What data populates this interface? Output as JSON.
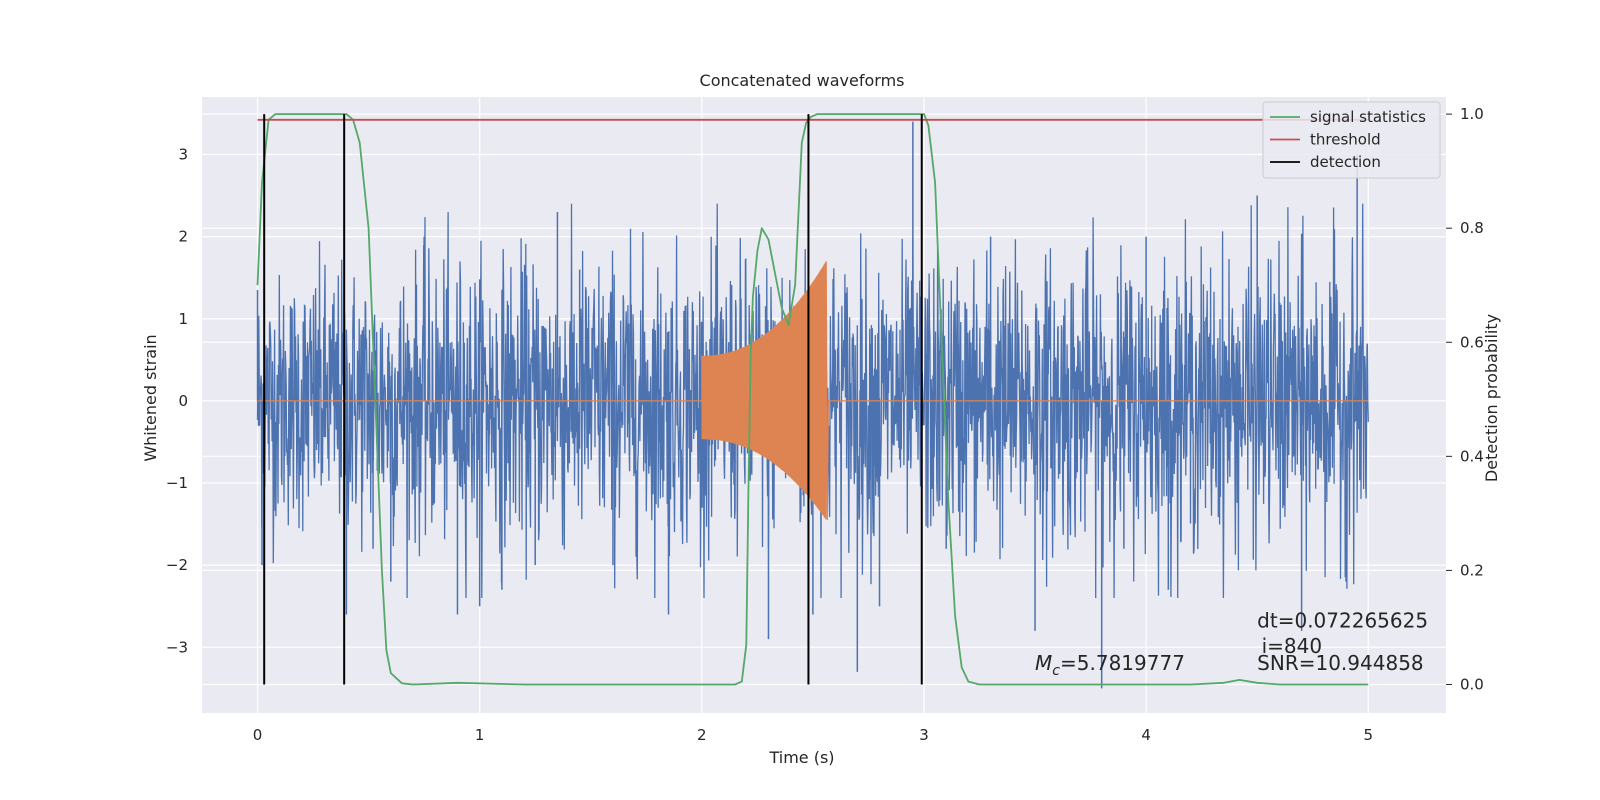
{
  "chart_data": {
    "type": "line",
    "title": "Concatenated waveforms",
    "xlabel": "Time (s)",
    "ylabel_left": "Whitened strain",
    "ylabel_right": "Detection probability",
    "xlim": [
      -0.25,
      5.35
    ],
    "ylim_left": [
      -3.8,
      3.7
    ],
    "ylim_right": [
      -0.05,
      1.03
    ],
    "x_ticks": [
      0,
      1,
      2,
      3,
      4,
      5
    ],
    "x_tick_labels": [
      "0",
      "1",
      "2",
      "3",
      "4",
      "5"
    ],
    "y_left_ticks": [
      -3,
      -2,
      -1,
      0,
      1,
      2,
      3
    ],
    "y_left_tick_labels": [
      "−3",
      "−2",
      "−1",
      "0",
      "1",
      "2",
      "3"
    ],
    "y_right_ticks": [
      0.0,
      0.2,
      0.4,
      0.6,
      0.8,
      1.0
    ],
    "y_right_tick_labels": [
      "0.0",
      "0.2",
      "0.4",
      "0.6",
      "0.8",
      "1.0"
    ],
    "grid": true,
    "background": "#eaeaf2",
    "legend": {
      "placement": "top-right",
      "entries": [
        {
          "label": "signal statistics",
          "color": "#55a868"
        },
        {
          "label": "threshold",
          "color": "#c44e52"
        },
        {
          "label": "detection",
          "color": "#000000"
        }
      ]
    },
    "series": [
      {
        "axis": "left",
        "color": "#4c72b0",
        "t_range": [
          0,
          5
        ],
        "noise_envelope": [
          [
            0.0,
            1.2
          ],
          [
            0.5,
            1.3
          ],
          [
            1.0,
            1.35
          ],
          [
            1.5,
            1.4
          ],
          [
            2.0,
            1.35
          ],
          [
            2.5,
            1.4
          ],
          [
            3.0,
            1.35
          ],
          [
            3.5,
            1.4
          ],
          [
            4.0,
            1.35
          ],
          [
            4.5,
            1.4
          ],
          [
            5.0,
            1.4
          ]
        ],
        "peaks": [
          [
            0.0,
            1.35
          ],
          [
            0.02,
            -2.0
          ],
          [
            0.03,
            2.2
          ],
          [
            0.4,
            -2.6
          ],
          [
            0.52,
            -1.8
          ],
          [
            0.6,
            -2.2
          ],
          [
            0.75,
            2.0
          ],
          [
            0.9,
            -2.6
          ],
          [
            1.0,
            -2.5
          ],
          [
            1.1,
            -2.3
          ],
          [
            1.25,
            -2.0
          ],
          [
            1.35,
            2.3
          ],
          [
            1.45,
            1.6
          ],
          [
            1.6,
            -2.0
          ],
          [
            1.85,
            -2.6
          ],
          [
            2.3,
            -2.9
          ],
          [
            2.5,
            -2.6
          ],
          [
            2.7,
            -3.3
          ],
          [
            2.8,
            -2.5
          ],
          [
            2.95,
            3.4
          ],
          [
            3.1,
            -1.8
          ],
          [
            3.3,
            2.0
          ],
          [
            3.5,
            -2.8
          ],
          [
            3.8,
            -3.5
          ],
          [
            3.9,
            -1.8
          ],
          [
            4.0,
            2.0
          ],
          [
            4.1,
            -2.3
          ],
          [
            4.5,
            2.5
          ],
          [
            4.7,
            -2.8
          ],
          [
            4.9,
            -2.2
          ],
          [
            4.95,
            3.0
          ]
        ]
      },
      {
        "axis": "left",
        "color": "#dd8452",
        "t_range": [
          0,
          5
        ],
        "chirp": {
          "start": 2.0,
          "end": 2.56,
          "amplitude_start": 0.55,
          "amplitude_end": 1.7,
          "tail_min": -1.45
        }
      },
      {
        "name": "signal statistics",
        "axis": "right",
        "color": "#55a868",
        "x": [
          0.0,
          0.02,
          0.05,
          0.08,
          0.15,
          0.4,
          0.43,
          0.46,
          0.5,
          0.53,
          0.56,
          0.58,
          0.6,
          0.65,
          0.7,
          0.9,
          1.2,
          1.6,
          2.0,
          2.1,
          2.15,
          2.18,
          2.2,
          2.21,
          2.22,
          2.23,
          2.25,
          2.27,
          2.3,
          2.33,
          2.36,
          2.39,
          2.42,
          2.45,
          2.47,
          2.49,
          2.52,
          2.55,
          2.7,
          3.0,
          3.02,
          3.05,
          3.08,
          3.11,
          3.14,
          3.17,
          3.2,
          3.25,
          3.3,
          3.5,
          3.8,
          4.2,
          4.35,
          4.42,
          4.5,
          4.6,
          5.0
        ],
        "values": [
          0.7,
          0.88,
          0.99,
          1.0,
          1.0,
          1.0,
          0.99,
          0.95,
          0.8,
          0.5,
          0.2,
          0.06,
          0.02,
          0.002,
          0.0,
          0.003,
          0.0,
          0.0,
          0.0,
          0.0,
          0.0,
          0.005,
          0.07,
          0.35,
          0.58,
          0.68,
          0.76,
          0.8,
          0.78,
          0.72,
          0.66,
          0.63,
          0.7,
          0.95,
          0.985,
          0.995,
          1.0,
          1.0,
          1.0,
          1.0,
          0.98,
          0.88,
          0.6,
          0.32,
          0.12,
          0.03,
          0.005,
          0.0,
          0.0,
          0.0,
          0.0,
          0.0,
          0.003,
          0.008,
          0.003,
          0.0,
          0.0
        ]
      },
      {
        "name": "threshold",
        "axis": "right",
        "color": "#c44e52",
        "x": [
          0,
          5
        ],
        "values": [
          0.99,
          0.99
        ]
      },
      {
        "name": "detection",
        "axis": "right",
        "color": "#000000",
        "type": "vlines",
        "x": [
          0.03,
          0.39,
          2.48,
          2.99
        ],
        "y_range": [
          0,
          1.0
        ]
      }
    ],
    "annotations": [
      {
        "text": "dt=0.072265625",
        "x": 4.5,
        "y": 0.1
      },
      {
        "text": "i=840",
        "x": 4.52,
        "y": 0.055
      },
      {
        "text": "SNR=10.944858",
        "x": 4.5,
        "y": 0.025
      },
      {
        "text": "M",
        "sub": "c",
        "value": "=5.7819777",
        "x": 3.5,
        "y": 0.025
      }
    ]
  }
}
